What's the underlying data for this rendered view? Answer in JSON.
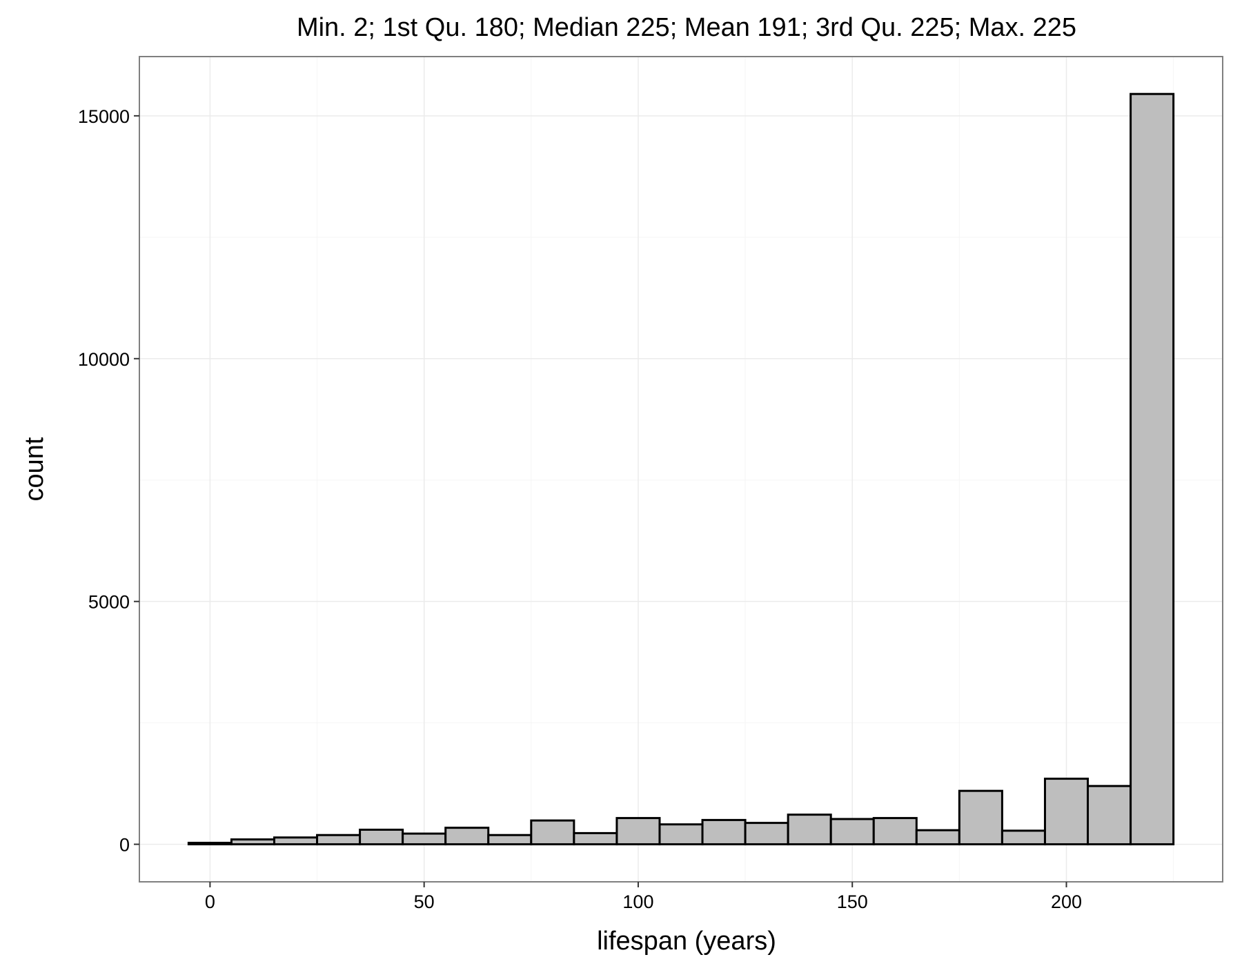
{
  "chart_data": {
    "type": "bar",
    "title": "Min.   2; 1st Qu. 180; Median 225; Mean 191; 3rd Qu. 225; Max. 225",
    "xlabel": "lifespan (years)",
    "ylabel": "count",
    "bin_width": 10,
    "bins": [
      {
        "x_start": -5,
        "x_end": 5,
        "count": 30
      },
      {
        "x_start": 5,
        "x_end": 15,
        "count": 100
      },
      {
        "x_start": 15,
        "x_end": 25,
        "count": 140
      },
      {
        "x_start": 25,
        "x_end": 35,
        "count": 190
      },
      {
        "x_start": 35,
        "x_end": 45,
        "count": 300
      },
      {
        "x_start": 45,
        "x_end": 55,
        "count": 220
      },
      {
        "x_start": 55,
        "x_end": 65,
        "count": 340
      },
      {
        "x_start": 65,
        "x_end": 75,
        "count": 190
      },
      {
        "x_start": 75,
        "x_end": 85,
        "count": 490
      },
      {
        "x_start": 85,
        "x_end": 95,
        "count": 230
      },
      {
        "x_start": 95,
        "x_end": 105,
        "count": 540
      },
      {
        "x_start": 105,
        "x_end": 115,
        "count": 410
      },
      {
        "x_start": 115,
        "x_end": 125,
        "count": 500
      },
      {
        "x_start": 125,
        "x_end": 135,
        "count": 440
      },
      {
        "x_start": 135,
        "x_end": 145,
        "count": 610
      },
      {
        "x_start": 145,
        "x_end": 155,
        "count": 520
      },
      {
        "x_start": 155,
        "x_end": 165,
        "count": 540
      },
      {
        "x_start": 165,
        "x_end": 175,
        "count": 290
      },
      {
        "x_start": 175,
        "x_end": 185,
        "count": 1100
      },
      {
        "x_start": 185,
        "x_end": 195,
        "count": 280
      },
      {
        "x_start": 195,
        "x_end": 205,
        "count": 1350
      },
      {
        "x_start": 205,
        "x_end": 215,
        "count": 1200
      },
      {
        "x_start": 215,
        "x_end": 225,
        "count": 15450
      }
    ],
    "x_ticks": [
      0,
      50,
      100,
      150,
      200
    ],
    "x_tick_labels": [
      "0",
      "50",
      "100",
      "150",
      "200"
    ],
    "y_ticks": [
      0,
      5000,
      10000,
      15000
    ],
    "y_tick_labels": [
      "0",
      "5000",
      "10000",
      "15000"
    ],
    "xlim": [
      -16.5,
      236.5
    ],
    "ylim": [
      -773,
      16220
    ],
    "grid": true,
    "legend": "none",
    "colors": {
      "bar_fill": "#bebebe",
      "bar_stroke": "#000000",
      "grid_major": "#ebebeb",
      "grid_minor": "#f5f5f5",
      "panel_border": "#7f7f7f",
      "background": "#ffffff"
    }
  }
}
